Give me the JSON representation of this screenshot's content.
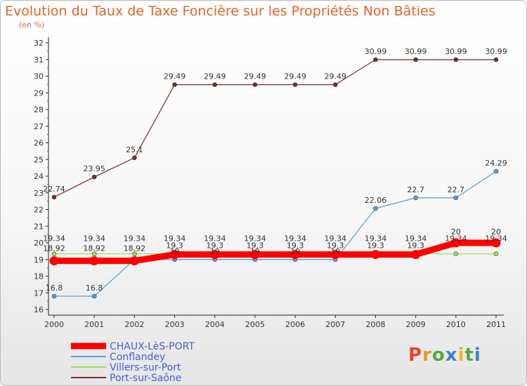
{
  "chart_data": {
    "type": "line",
    "title": "Evolution du Taux de Taxe Foncière sur les Propriétés Non Bâties",
    "subtitle": "(en %)",
    "xlabel": "",
    "ylabel": "(en %)",
    "categories": [
      "2000",
      "2001",
      "2002",
      "2003",
      "2004",
      "2005",
      "2006",
      "2007",
      "2008",
      "2009",
      "2010",
      "2011"
    ],
    "ylim": [
      16,
      32
    ],
    "yticks": [
      16,
      17,
      18,
      19,
      20,
      21,
      22,
      23,
      24,
      25,
      26,
      27,
      28,
      29,
      30,
      31,
      32
    ],
    "grid": false,
    "legend_position": "bottom-left",
    "series": [
      {
        "name": "CHAUX-LèS-PORT",
        "color": "#ff0000",
        "values": [
          18.92,
          18.92,
          18.92,
          19.3,
          19.3,
          19.3,
          19.3,
          19.3,
          19.3,
          19.3,
          20,
          20
        ],
        "labels": [
          "18.92",
          "18.92",
          "18.92",
          "19.3",
          "19.3",
          "19.3",
          "19.3",
          "19.3",
          "19.3",
          "19.3",
          "20",
          "20"
        ]
      },
      {
        "name": "Conflandey",
        "color": "#5a9bd5",
        "values": [
          16.8,
          16.8,
          19,
          19,
          19,
          19,
          19,
          19,
          22.06,
          22.7,
          22.7,
          24.29
        ],
        "labels": [
          "16.8",
          "16.8",
          "",
          "19",
          "19",
          "19",
          "19",
          "19",
          "22.06",
          "22.7",
          "22.7",
          "24.29"
        ]
      },
      {
        "name": "Villers-sur-Port",
        "color": "#99dd55",
        "values": [
          19.34,
          19.34,
          19.34,
          19.34,
          19.34,
          19.34,
          19.34,
          19.34,
          19.34,
          19.34,
          19.34,
          19.34
        ],
        "labels": [
          "19.34",
          "19.34",
          "19.34",
          "19.34",
          "19.34",
          "19.34",
          "19.34",
          "19.34",
          "19.34",
          "19.34",
          "19.34",
          "19.34"
        ]
      },
      {
        "name": "Port-sur-Saône",
        "color": "#7a2a2a",
        "values": [
          22.74,
          23.95,
          25.1,
          29.49,
          29.49,
          29.49,
          29.49,
          29.49,
          30.99,
          30.99,
          30.99,
          30.99
        ],
        "labels": [
          "22.74",
          "23.95",
          "25.1",
          "29.49",
          "29.49",
          "29.49",
          "29.49",
          "29.49",
          "30.99",
          "30.99",
          "30.99",
          "30.99"
        ]
      }
    ]
  },
  "logo": {
    "letters": [
      "P",
      "r",
      "o",
      "x",
      "i",
      "t",
      "i"
    ],
    "colors": [
      "#e9452a",
      "#f0932b",
      "#5aa63b",
      "#3a7fd0",
      "#e8b820",
      "#5aa63b",
      "#3a7fd0"
    ]
  }
}
